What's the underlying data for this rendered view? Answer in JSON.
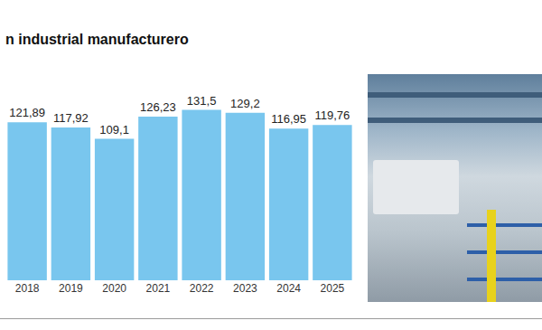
{
  "chart_data": {
    "type": "bar",
    "title": "n industrial manufacturero",
    "categories": [
      "2018",
      "2019",
      "2020",
      "2021",
      "2022",
      "2023",
      "2024",
      "2025"
    ],
    "values": [
      121.89,
      117.92,
      109.1,
      126.23,
      131.5,
      129.2,
      116.95,
      119.76
    ],
    "value_labels": [
      "121,89",
      "117,92",
      "109,1",
      "126,23",
      "131,5",
      "129,2",
      "116,95",
      "119,76"
    ],
    "color": "#79c6ee",
    "ylim": [
      0,
      150
    ],
    "grid": false,
    "data_labels": true,
    "tick_labels": "x"
  }
}
